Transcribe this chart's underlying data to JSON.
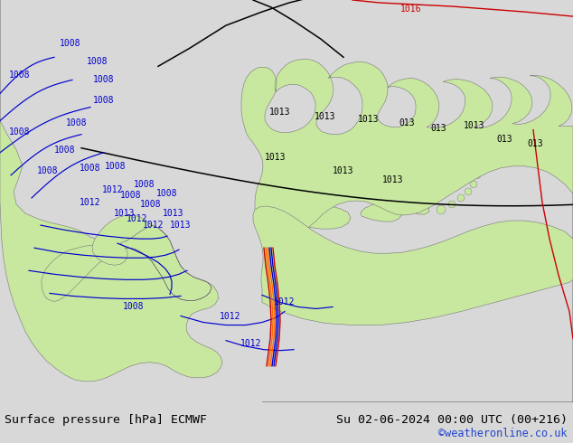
{
  "title_left": "Surface pressure [hPa] ECMWF",
  "title_right": "Su 02-06-2024 00:00 UTC (00+216)",
  "credit": "©weatheronline.co.uk",
  "bg_color": "#d8d8d8",
  "map_bg": "#d8d8d8",
  "land_color": "#c8e8a0",
  "sea_color": "#d8d8d8",
  "title_font_size": 9.5,
  "credit_font_size": 8.5,
  "credit_color": "#2244cc",
  "footer_bg": "#d8d8d8",
  "contour_blue": "#0000cc",
  "contour_black": "#000000",
  "contour_red": "#cc0000",
  "contour_orange": "#ff6600"
}
